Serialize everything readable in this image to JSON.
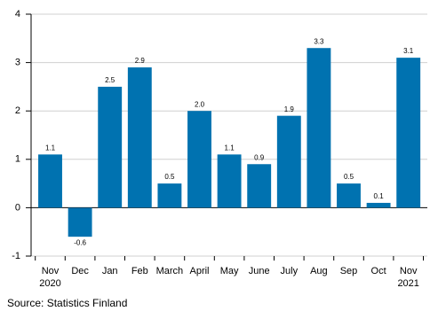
{
  "chart_data": {
    "type": "bar",
    "categories": [
      "Nov\n2020",
      "Dec",
      "Jan",
      "Feb",
      "March",
      "April",
      "May",
      "June",
      "July",
      "Aug",
      "Sep",
      "Oct",
      "Nov\n2021"
    ],
    "values": [
      1.1,
      -0.6,
      2.5,
      2.9,
      0.5,
      2.0,
      1.1,
      0.9,
      1.9,
      3.3,
      0.5,
      0.1,
      3.1
    ],
    "value_labels": [
      "1.1",
      "-0.6",
      "2.5",
      "2.9",
      "0.5",
      "2.0",
      "1.1",
      "0.9",
      "1.9",
      "3.3",
      "0.5",
      "0.1",
      "3.1"
    ],
    "color": "#0072b0",
    "ylim": [
      -1,
      4
    ],
    "yticks": [
      -1,
      0,
      1,
      2,
      3,
      4
    ],
    "grid": true,
    "source": "Source: Statistics Finland"
  }
}
